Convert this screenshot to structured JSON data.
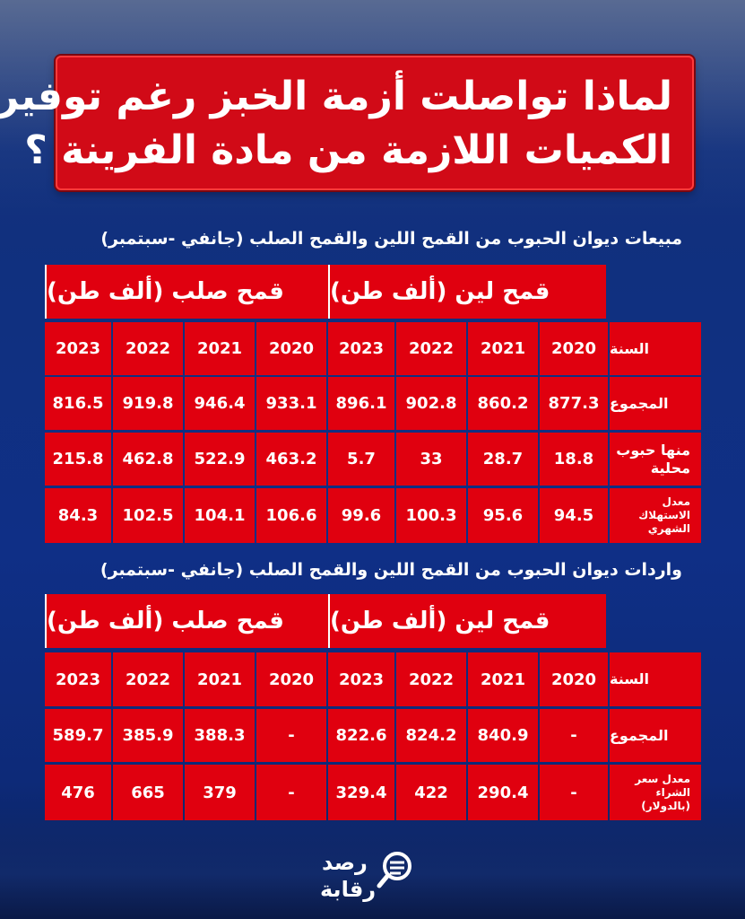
{
  "title": {
    "line1": "لماذا تواصلت أزمة الخبز رغم توفير",
    "line2": "الكميات اللازمة من مادة الفرينة ؟"
  },
  "table1": {
    "caption": "مبيعات ديوان الحبوب من القمح اللين والقمح الصلب (جانفي -سبتمبر)",
    "group_soft": "قمح لين (ألف طن)",
    "group_hard": "قمح صلب (ألف طن)",
    "rows": [
      {
        "label": "السنة",
        "soft": [
          "2020",
          "2021",
          "2022",
          "2023"
        ],
        "hard": [
          "2020",
          "2021",
          "2022",
          "2023"
        ]
      },
      {
        "label": "المجموع",
        "soft": [
          "877.3",
          "860.2",
          "902.8",
          "896.1"
        ],
        "hard": [
          "933.1",
          "946.4",
          "919.8",
          "816.5"
        ]
      },
      {
        "label": "منها حبوب محلية",
        "soft": [
          "18.8",
          "28.7",
          "33",
          "5.7"
        ],
        "hard": [
          "463.2",
          "522.9",
          "462.8",
          "215.8"
        ]
      },
      {
        "label": "معدل الاستهلاك الشهري",
        "soft": [
          "94.5",
          "95.6",
          "100.3",
          "99.6"
        ],
        "hard": [
          "106.6",
          "104.1",
          "102.5",
          "84.3"
        ]
      }
    ]
  },
  "table2": {
    "caption": "واردات ديوان الحبوب من القمح اللين والقمح الصلب (جانفي -سبتمبر)",
    "group_soft": "قمح لين (ألف طن)",
    "group_hard": "قمح صلب (ألف طن)",
    "rows": [
      {
        "label": "السنة",
        "soft": [
          "2020",
          "2021",
          "2022",
          "2023"
        ],
        "hard": [
          "2020",
          "2021",
          "2022",
          "2023"
        ]
      },
      {
        "label": "المجموع",
        "soft": [
          "-",
          "840.9",
          "824.2",
          "822.6"
        ],
        "hard": [
          "-",
          "388.3",
          "385.9",
          "589.7"
        ]
      },
      {
        "label": "معدل سعر الشراء (بالدولار)",
        "soft": [
          "-",
          "290.4",
          "422",
          "329.4"
        ],
        "hard": [
          "-",
          "379",
          "665",
          "476"
        ]
      }
    ]
  },
  "logo": {
    "line1": "رصد",
    "line2": "رقابة",
    "icon": "magnifier-icon"
  },
  "colors": {
    "background": "#10307f",
    "red": "#e0000f",
    "text": "#ffffff"
  }
}
